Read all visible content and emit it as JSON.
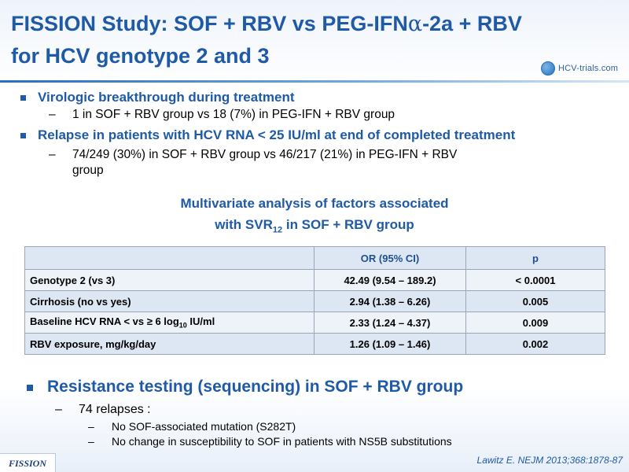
{
  "title": {
    "line1_prefix": "FISSION Study: SOF + RBV vs PEG-IFN",
    "alpha": "α",
    "line1_suffix": "-2a + RBV",
    "line2": "for HCV genotype 2 and 3"
  },
  "logo": {
    "text": "HCV-trials.com"
  },
  "bullets": [
    {
      "heading": "Virologic breakthrough during treatment",
      "sub": "1 in SOF + RBV group vs 18 (7%) in PEG-IFN + RBV group"
    },
    {
      "heading": "Relapse in patients with HCV RNA < 25 IU/ml at end of completed treatment",
      "sub_line1": "74/249 (30%) in SOF + RBV group vs 46/217 (21%) in PEG-IFN + RBV",
      "sub_line2": "group"
    }
  ],
  "subhead": {
    "line1": "Multivariate analysis of factors associated",
    "line2_prefix": "with SVR",
    "line2_sub": "12",
    "line2_suffix": " in SOF + RBV group"
  },
  "table": {
    "headers": [
      "",
      "OR (95% CI)",
      "p"
    ],
    "rows": [
      {
        "factor": "Genotype 2 (vs 3)",
        "or": "42.49 (9.54 – 189.2)",
        "p": "< 0.0001"
      },
      {
        "factor": "Cirrhosis (no vs yes)",
        "or": "2.94 (1.38 – 6.26)",
        "p": "0.005"
      },
      {
        "factor_prefix": "Baseline HCV RNA < vs ≥ 6 log",
        "factor_sub": "10",
        "factor_suffix": " IU/ml",
        "or": "2.33 (1.24 – 4.37)",
        "p": "0.009"
      },
      {
        "factor": "RBV exposure, mg/kg/day",
        "or": "1.26 (1.09 – 1.46)",
        "p": "0.002"
      }
    ]
  },
  "resistance": {
    "heading": "Resistance testing (sequencing) in SOF + RBV group",
    "sub": "74 relapses :",
    "items": [
      "No SOF-associated mutation (S282T)",
      "No change in susceptibility to SOF in patients with NS5B substitutions"
    ]
  },
  "dash": "–",
  "footer": {
    "logo": "FISSION",
    "reference": "Lawitz  E. NEJM 2013;368:1878-87"
  },
  "colors": {
    "accent": "#1f5aa6"
  }
}
